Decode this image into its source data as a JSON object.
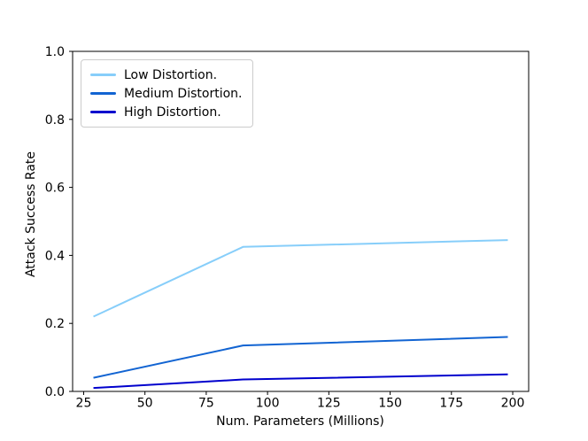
{
  "chart_data": {
    "type": "line",
    "title": "",
    "xlabel": "Num. Parameters (Millions)",
    "ylabel": "Attack Success Rate",
    "x": [
      29,
      90,
      198
    ],
    "series": [
      {
        "name": "Low Distortion.",
        "color": "#87CEFA",
        "values": [
          0.22,
          0.425,
          0.445
        ]
      },
      {
        "name": "Medium Distortion.",
        "color": "#1264D2",
        "values": [
          0.04,
          0.135,
          0.16
        ]
      },
      {
        "name": "High Distortion.",
        "color": "#0000CD",
        "values": [
          0.01,
          0.035,
          0.05
        ]
      }
    ],
    "xlim": [
      20.5,
      206.5
    ],
    "ylim": [
      0,
      1
    ],
    "xticks": [
      25,
      50,
      75,
      100,
      125,
      150,
      175,
      200
    ],
    "xtick_labels": [
      "25",
      "50",
      "75",
      "100",
      "125",
      "150",
      "175",
      "200"
    ],
    "yticks": [
      0,
      0.2,
      0.4,
      0.6,
      0.8,
      1.0
    ],
    "ytick_labels": [
      "0.0",
      "0.2",
      "0.4",
      "0.6",
      "0.8",
      "1.0"
    ],
    "legend": {
      "position": "upper-left"
    },
    "grid": false,
    "axis_color": "#000000",
    "line_width": 2
  }
}
